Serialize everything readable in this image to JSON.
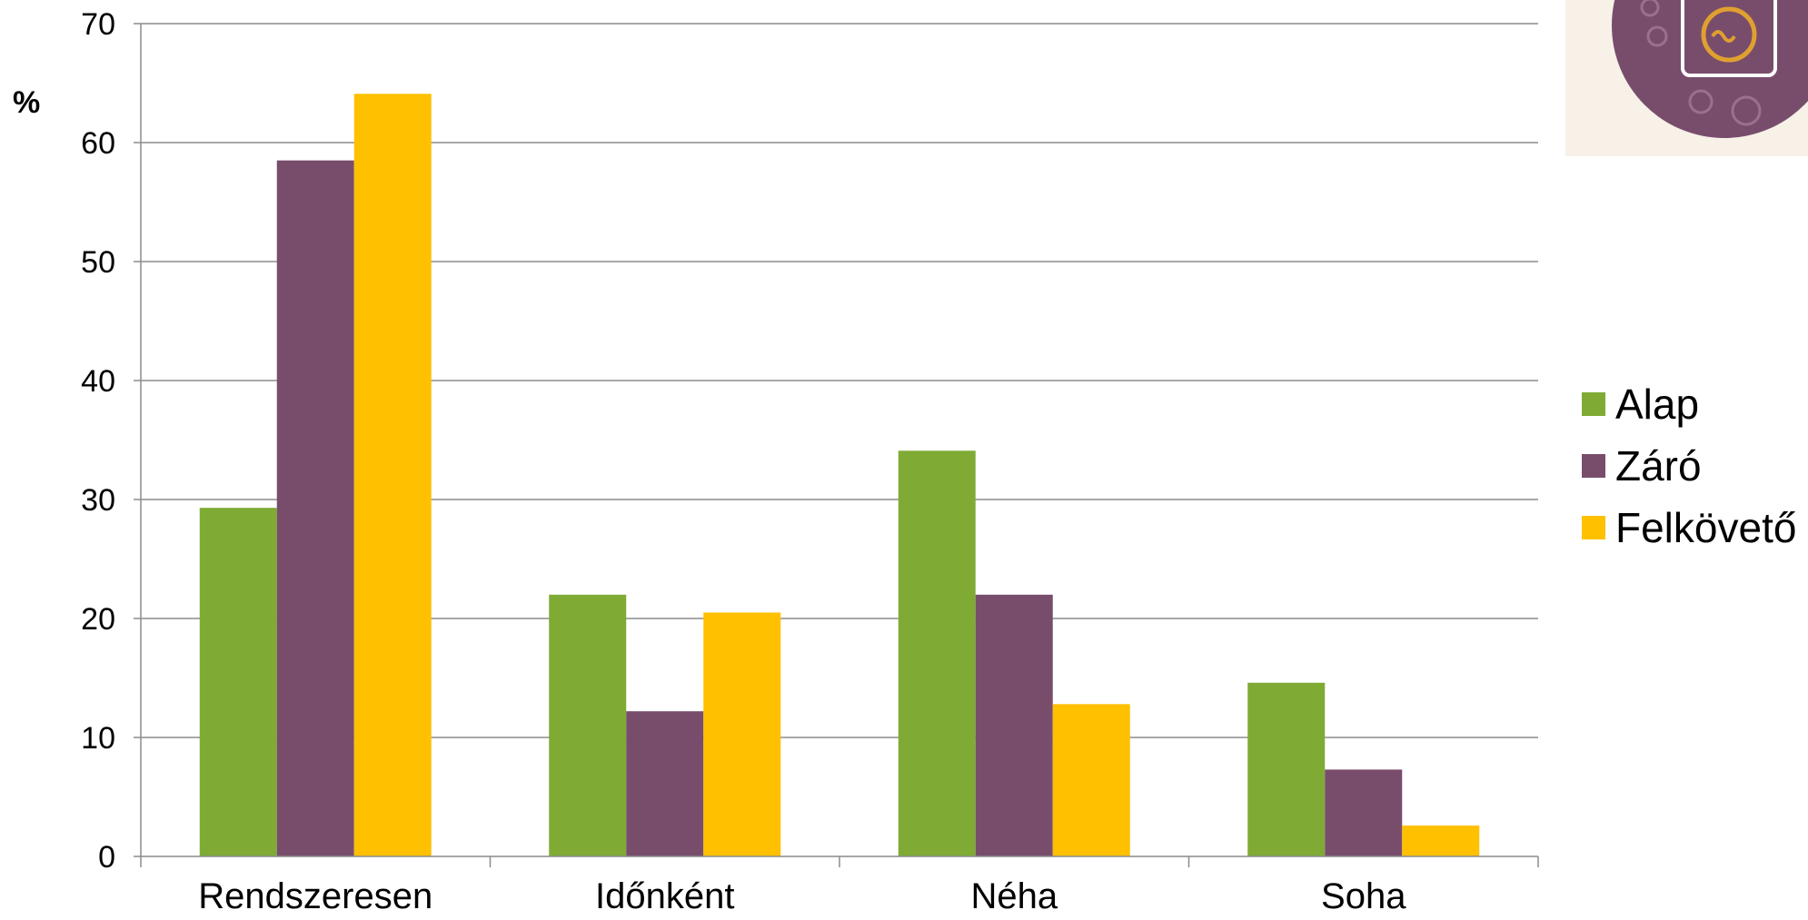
{
  "chart_data": {
    "type": "bar",
    "title": "",
    "xlabel": "",
    "ylabel": "%",
    "ylim": [
      0,
      70
    ],
    "yticks": [
      0,
      10,
      20,
      30,
      40,
      50,
      60,
      70
    ],
    "grid": true,
    "legend_position": "right",
    "categories": [
      "Rendszeresen",
      "Időnként",
      "Néha",
      "Soha"
    ],
    "series": [
      {
        "name": "Alap",
        "color": "#7fab35",
        "values": [
          29.3,
          22.0,
          34.1,
          14.6
        ]
      },
      {
        "name": "Záró",
        "color": "#784d6c",
        "values": [
          58.5,
          12.2,
          22.0,
          7.3
        ]
      },
      {
        "name": "Felkövető",
        "color": "#ffc000",
        "values": [
          64.1,
          20.5,
          12.8,
          2.6
        ]
      }
    ]
  },
  "logo": {
    "icon": "washing-machine-icon",
    "background": "#f7f1e8",
    "circle_color": "#784d6c",
    "accent_color": "#e0a030"
  }
}
